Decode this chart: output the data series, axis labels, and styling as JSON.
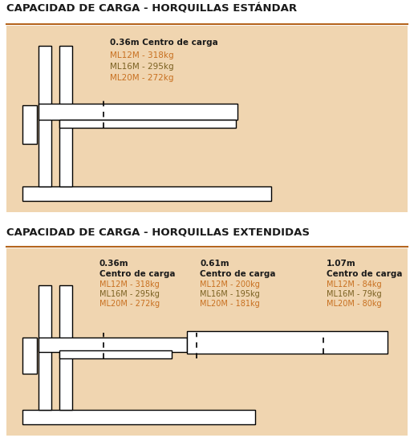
{
  "title1": "CAPACIDAD DE CARGA - HORQUILLAS ESTÁNDAR",
  "title2": "CAPACIDAD DE CARGA - HORQUILLAS EXTENDIDAS",
  "bg_color": "#f0d5b0",
  "white": "#ffffff",
  "black": "#000000",
  "title_color": "#1a1a1a",
  "accent_line_color": "#b5651d",
  "ml12m_color": "#c87020",
  "ml16m_color": "#7a6020",
  "ml20m_color": "#c87020",
  "section1": {
    "header": "0.36m Centro de carga",
    "ml12m": "ML12M - 318kg",
    "ml16m": "ML16M - 295kg",
    "ml20m": "ML20M - 272kg"
  },
  "section2": {
    "col1_h1": "0.36m",
    "col1_h2": "Centro de carga",
    "col1_ml12m": "ML12M - 318kg",
    "col1_ml16m": "ML16M - 295kg",
    "col1_ml20m": "ML20M - 272kg",
    "col2_h1": "0.61m",
    "col2_h2": "Centro de carga",
    "col2_ml12m": "ML12M - 200kg",
    "col2_ml16m": "ML16M - 195kg",
    "col2_ml20m": "ML20M - 181kg",
    "col3_h1": "1.07m",
    "col3_h2": "Centro de carga",
    "col3_ml12m": "ML12M - 84kg",
    "col3_ml16m": "ML16M - 79kg",
    "col3_ml20m": "ML20M - 80kg"
  }
}
